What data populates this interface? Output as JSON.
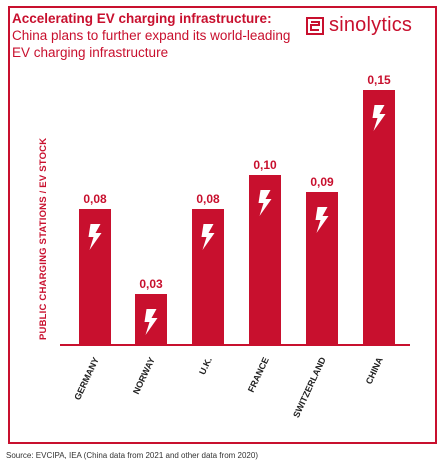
{
  "title": {
    "bold": "Accelerating EV charging infrastructure:",
    "rest": " China plans to further expand its world-leading EV charging infrastructure"
  },
  "logo": {
    "text": "sinolytics"
  },
  "source": "Source: EVCIPA, IEA (China data from 2021 and other data from 2020)",
  "colors": {
    "accent": "#c8102e",
    "bolt": "#ffffff"
  },
  "chart_data": {
    "type": "bar",
    "title": "",
    "ylabel": "PUBLIC CHARGING STATIONS / EV STOCK",
    "xlabel": "",
    "categories": [
      "GERMANY",
      "NORWAY",
      "U.K.",
      "FRANCE",
      "SWITZERLAND",
      "CHINA"
    ],
    "values": [
      0.08,
      0.03,
      0.08,
      0.1,
      0.09,
      0.15
    ],
    "value_labels": [
      "0,08",
      "0,03",
      "0,08",
      "0,10",
      "0,09",
      "0,15"
    ],
    "ylim": [
      0,
      0.16
    ],
    "grid": false,
    "legend": "none",
    "icon": "lightning-bolt-icon"
  }
}
